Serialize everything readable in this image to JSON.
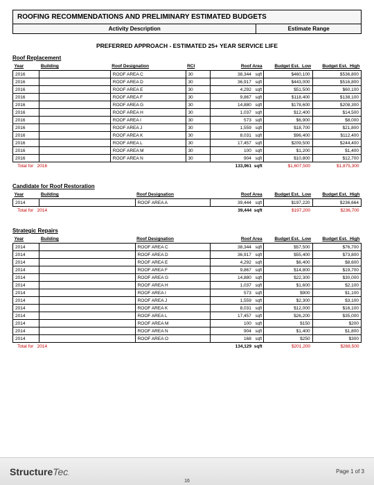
{
  "header": {
    "title": "ROOFING RECOMMENDATIONS AND PRELIMINARY ESTIMATED BUDGETS",
    "activity_label": "Activity Description",
    "estimate_label": "Estimate Range"
  },
  "approach": "PREFERRED APPROACH - ESTIMATED 25+ YEAR SERVICE LIFE",
  "columns": {
    "year": "Year",
    "building": "Building",
    "roof_designation": "Roof Designation",
    "rci": "RCI",
    "roof_area": "Roof Area",
    "budget_low": "Budget Est.  Low",
    "budget_high": "Budget Est.  High"
  },
  "unit": "sqft",
  "total_prefix": "Total for",
  "sections": [
    {
      "title": "Roof Replacement",
      "has_rci": true,
      "rows": [
        {
          "year": "2016",
          "building": "",
          "desig": "ROOF AREA C",
          "rci": "30",
          "area": "38,344",
          "low": "$460,100",
          "high": "$536,800"
        },
        {
          "year": "2016",
          "building": "",
          "desig": "ROOF AREA D",
          "rci": "30",
          "area": "36,917",
          "low": "$443,000",
          "high": "$516,800"
        },
        {
          "year": "2016",
          "building": "",
          "desig": "ROOF AREA E",
          "rci": "30",
          "area": "4,292",
          "low": "$51,500",
          "high": "$60,100"
        },
        {
          "year": "2016",
          "building": "",
          "desig": "ROOF AREA F",
          "rci": "30",
          "area": "9,867",
          "low": "$118,400",
          "high": "$138,100"
        },
        {
          "year": "2016",
          "building": "",
          "desig": "ROOF AREA G",
          "rci": "30",
          "area": "14,880",
          "low": "$178,600",
          "high": "$208,300"
        },
        {
          "year": "2016",
          "building": "",
          "desig": "ROOF AREA H",
          "rci": "30",
          "area": "1,037",
          "low": "$12,400",
          "high": "$14,500"
        },
        {
          "year": "2016",
          "building": "",
          "desig": "ROOF AREA I",
          "rci": "30",
          "area": "573",
          "low": "$6,900",
          "high": "$8,000"
        },
        {
          "year": "2016",
          "building": "",
          "desig": "ROOF AREA J",
          "rci": "30",
          "area": "1,559",
          "low": "$18,700",
          "high": "$21,800"
        },
        {
          "year": "2016",
          "building": "",
          "desig": "ROOF AREA K",
          "rci": "30",
          "area": "8,031",
          "low": "$96,400",
          "high": "$112,400"
        },
        {
          "year": "2016",
          "building": "",
          "desig": "ROOF AREA L",
          "rci": "30",
          "area": "17,457",
          "low": "$209,500",
          "high": "$244,400"
        },
        {
          "year": "2016",
          "building": "",
          "desig": "ROOF AREA M",
          "rci": "30",
          "area": "100",
          "low": "$1,200",
          "high": "$1,400"
        },
        {
          "year": "2016",
          "building": "",
          "desig": "ROOF AREA N",
          "rci": "30",
          "area": "904",
          "low": "$10,800",
          "high": "$12,700"
        }
      ],
      "total": {
        "year": "2016",
        "area": "133,961",
        "low": "$1,607,500",
        "high": "$1,875,300"
      }
    },
    {
      "title": "Candidate for Roof Restoration",
      "has_rci": false,
      "rows": [
        {
          "year": "2014",
          "building": "",
          "desig": "ROOF AREA A",
          "area": "39,444",
          "low": "$197,220",
          "high": "$236,664"
        }
      ],
      "total": {
        "year": "2014",
        "area": "39,444",
        "low": "$197,200",
        "high": "$236,700"
      }
    },
    {
      "title": "Strategic Repairs",
      "has_rci": false,
      "rows": [
        {
          "year": "2014",
          "building": "",
          "desig": "ROOF AREA C",
          "area": "38,344",
          "low": "$57,500",
          "high": "$76,700"
        },
        {
          "year": "2014",
          "building": "",
          "desig": "ROOF AREA D",
          "area": "36,917",
          "low": "$55,400",
          "high": "$73,800"
        },
        {
          "year": "2014",
          "building": "",
          "desig": "ROOF AREA E",
          "area": "4,292",
          "low": "$6,400",
          "high": "$8,600"
        },
        {
          "year": "2014",
          "building": "",
          "desig": "ROOF AREA F",
          "area": "9,867",
          "low": "$14,800",
          "high": "$19,700"
        },
        {
          "year": "2014",
          "building": "",
          "desig": "ROOF AREA G",
          "area": "14,880",
          "low": "$22,300",
          "high": "$30,000"
        },
        {
          "year": "2014",
          "building": "",
          "desig": "ROOF AREA H",
          "area": "1,037",
          "low": "$1,600",
          "high": "$2,100"
        },
        {
          "year": "2014",
          "building": "",
          "desig": "ROOF AREA I",
          "area": "573",
          "low": "$900",
          "high": "$1,100"
        },
        {
          "year": "2014",
          "building": "",
          "desig": "ROOF AREA J",
          "area": "1,559",
          "low": "$2,300",
          "high": "$3,100"
        },
        {
          "year": "2014",
          "building": "",
          "desig": "ROOF AREA K",
          "area": "8,031",
          "low": "$12,000",
          "high": "$16,100"
        },
        {
          "year": "2014",
          "building": "",
          "desig": "ROOF AREA L",
          "area": "17,457",
          "low": "$26,200",
          "high": "$35,000"
        },
        {
          "year": "2014",
          "building": "",
          "desig": "ROOF AREA M",
          "area": "100",
          "low": "$150",
          "high": "$200"
        },
        {
          "year": "2014",
          "building": "",
          "desig": "ROOF AREA N",
          "area": "904",
          "low": "$1,400",
          "high": "$1,800"
        },
        {
          "year": "2014",
          "building": "",
          "desig": "ROOF AREA O",
          "area": "168",
          "low": "$250",
          "high": "$300"
        }
      ],
      "total": {
        "year": "2014",
        "area": "134,129",
        "low": "$201,200",
        "high": "$268,500"
      }
    }
  ],
  "footer": {
    "logo_bold": "Structure",
    "logo_light": "Tec",
    "page_label": "Page 1 of  3",
    "page_num": "16"
  }
}
